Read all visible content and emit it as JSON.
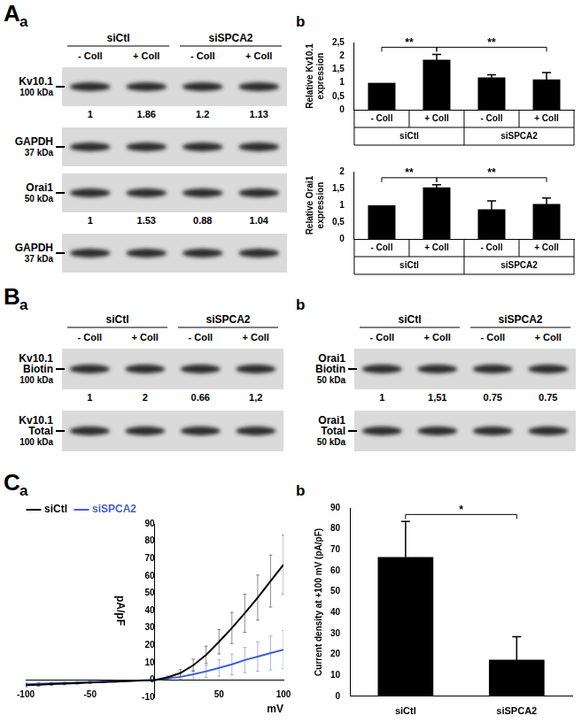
{
  "panels": [
    {
      "label": "A",
      "sub": [
        "a",
        "b"
      ]
    },
    {
      "label": "B",
      "sub": [
        "a",
        "b"
      ]
    },
    {
      "label": "C",
      "sub": [
        "a",
        "b"
      ]
    }
  ],
  "blots": [
    {
      "groups": [
        "siCtl",
        "siSPCA2"
      ],
      "lanes": [
        "- Coll",
        "+ Coll",
        "- Coll",
        "+ Coll"
      ],
      "rows": [
        {
          "name": [
            "Kv10.1"
          ],
          "mw": "100 kDa",
          "quant": [
            "1",
            "1.86",
            "1.2",
            "1.13"
          ]
        },
        {
          "name": [
            "GAPDH"
          ],
          "mw": "37 kDa"
        },
        {
          "name": [
            "Orai1"
          ],
          "mw": "50 kDa",
          "quant": [
            "1",
            "1.53",
            "0.88",
            "1.04"
          ]
        },
        {
          "name": [
            "GAPDH"
          ],
          "mw": "37 kDa"
        }
      ]
    },
    {
      "groups": [
        "siCtl",
        "siSPCA2"
      ],
      "lanes": [
        "- Coll",
        "+ Coll",
        "- Coll",
        "+ Coll"
      ],
      "rows": [
        {
          "name": [
            "Kv10.1",
            "Biotin"
          ],
          "mw": "100 kDa",
          "quant": [
            "1",
            "2",
            "0.66",
            "1,2"
          ]
        },
        {
          "name": [
            "Kv10.1",
            "Total"
          ],
          "mw": "100 kDa"
        }
      ]
    },
    {
      "groups": [
        "siCtl",
        "siSPCA2"
      ],
      "lanes": [
        "- Coll",
        "+ Coll",
        "- Coll",
        "+ Coll"
      ],
      "rows": [
        {
          "name": [
            "Orai1",
            "Biotin"
          ],
          "mw": "50 kDa",
          "quant": [
            "1",
            "1,51",
            "0.75",
            "0.75"
          ]
        },
        {
          "name": [
            "Orai1",
            "Total"
          ],
          "mw": "50 kDa"
        }
      ]
    }
  ],
  "chart_data": [
    {
      "type": "bar",
      "y_label": "Relative Kv10.1 expression",
      "categories": [
        "- Coll",
        "+ Coll",
        "- Coll",
        "+ Coll"
      ],
      "groups": [
        "siCtl",
        "siCtl",
        "siSPCA2",
        "siSPCA2"
      ],
      "values": [
        1,
        1.86,
        1.2,
        1.13
      ],
      "errors": [
        0,
        0.2,
        0.1,
        0.25
      ],
      "color": "#000000",
      "ylim": [
        0,
        2.5
      ],
      "yticks": [
        0,
        {
          "value": 0.5,
          "label": "0,5"
        },
        1,
        {
          "value": 1.5,
          "label": "1,5"
        },
        2,
        {
          "value": 2.5,
          "label": "2,5"
        }
      ],
      "grid": false,
      "annotations": [
        {
          "from": 0,
          "to": 1,
          "text": "**"
        },
        {
          "from": 1,
          "to": 3,
          "text": "**"
        }
      ]
    },
    {
      "type": "bar",
      "y_label": "Relative Orai1 expression",
      "categories": [
        "- Coll",
        "+ Coll",
        "- Coll",
        "+ Coll"
      ],
      "groups": [
        "siCtl",
        "siCtl",
        "siSPCA2",
        "siSPCA2"
      ],
      "values": [
        1,
        1.53,
        0.88,
        1.04
      ],
      "errors": [
        0,
        0.08,
        0.25,
        0.18
      ],
      "color": "#000000",
      "ylim": [
        0,
        2
      ],
      "yticks": [
        0,
        {
          "value": 0.5,
          "label": "0,5"
        },
        1,
        {
          "value": 1.5,
          "label": "1,5"
        },
        2
      ],
      "grid": false,
      "annotations": [
        {
          "from": 0,
          "to": 1,
          "text": "**"
        },
        {
          "from": 1,
          "to": 3,
          "text": "**"
        }
      ]
    },
    {
      "type": "line",
      "x_label": "mV",
      "y_label": "pA/pF",
      "x": [
        -100,
        -90,
        -80,
        -70,
        -60,
        -50,
        -40,
        -30,
        -20,
        -10,
        0,
        10,
        20,
        30,
        40,
        50,
        60,
        70,
        80,
        90,
        100
      ],
      "series": [
        {
          "name": "siCtl",
          "color": "#000000",
          "marker": "none",
          "line_style": "solid",
          "values": [
            -3,
            -2.7,
            -2.4,
            -2.1,
            -1.8,
            -1.5,
            -1.2,
            -0.9,
            -0.6,
            -0.3,
            0,
            1.5,
            4,
            8.5,
            14.5,
            22,
            30,
            38.5,
            47.5,
            57,
            66.5
          ],
          "errors": [
            1,
            0.9,
            0.8,
            0.7,
            0.6,
            0.5,
            0.4,
            0.3,
            0.2,
            0.1,
            0.2,
            0.8,
            2,
            3.5,
            5,
            7,
            9,
            11,
            13,
            15,
            17
          ]
        },
        {
          "name": "siSPCA2",
          "color": "#3d5fd1",
          "marker": "none",
          "line_style": "solid",
          "values": [
            -2.5,
            -2.2,
            -2,
            -1.7,
            -1.5,
            -1.2,
            -1,
            -0.7,
            -0.5,
            -0.2,
            0,
            0.8,
            1.8,
            3.3,
            5,
            7,
            9,
            11.5,
            13.5,
            15.5,
            17.5
          ],
          "errors": [
            1,
            0.9,
            0.8,
            0.7,
            0.6,
            0.5,
            0.4,
            0.3,
            0.2,
            0.1,
            0.2,
            0.6,
            1.5,
            2.5,
            3.5,
            4.8,
            6,
            7.3,
            8.5,
            9.8,
            11
          ]
        }
      ],
      "xlim": [
        -100,
        100
      ],
      "xticks": [
        -100,
        -50,
        50,
        100
      ],
      "ylim": [
        -10,
        90
      ],
      "yticks": [
        -10,
        0,
        10,
        20,
        30,
        40,
        50,
        60,
        70,
        80,
        90
      ],
      "grid": false,
      "legend": "upper left"
    },
    {
      "type": "bar",
      "y_label": "Current density at +100 mV (pA/pF)",
      "categories": [
        "siCtl",
        "siSPCA2"
      ],
      "values": [
        66.5,
        17.5
      ],
      "errors": [
        17,
        11
      ],
      "color": "#000000",
      "ylim": [
        0,
        90
      ],
      "yticks": [
        0,
        10,
        20,
        30,
        40,
        50,
        60,
        70,
        80,
        90
      ],
      "grid": false,
      "annotations": [
        {
          "from": 0,
          "to": 1,
          "text": "*"
        }
      ]
    }
  ]
}
